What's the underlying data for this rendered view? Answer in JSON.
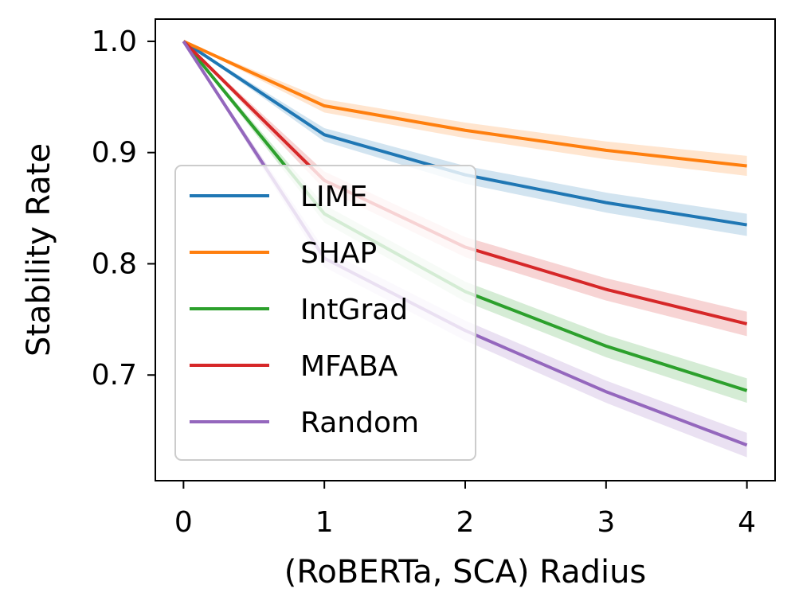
{
  "chart_data": {
    "type": "line",
    "title": "",
    "xlabel": "(RoBERTa, SCA) Radius",
    "ylabel": "Stability Rate",
    "x": [
      0,
      1,
      2,
      3,
      4
    ],
    "xlim": [
      -0.2,
      4.2
    ],
    "ylim": [
      0.605,
      1.02
    ],
    "x_ticks": [
      "0",
      "1",
      "2",
      "3",
      "4"
    ],
    "y_ticks": [
      {
        "value": 0.7,
        "label": "0.7"
      },
      {
        "value": 0.8,
        "label": "0.8"
      },
      {
        "value": 0.9,
        "label": "0.9"
      },
      {
        "value": 1.0,
        "label": "1.0"
      }
    ],
    "grid": false,
    "legend_position": "lower-left",
    "series": [
      {
        "name": "LIME",
        "color": "#1f77b4",
        "values": [
          1.0,
          0.916,
          0.88,
          0.855,
          0.835
        ],
        "band": [
          0.0,
          0.006,
          0.008,
          0.009,
          0.01
        ]
      },
      {
        "name": "SHAP",
        "color": "#ff7f0e",
        "values": [
          1.0,
          0.942,
          0.92,
          0.902,
          0.888
        ],
        "band": [
          0.0,
          0.006,
          0.007,
          0.008,
          0.009
        ]
      },
      {
        "name": "IntGrad",
        "color": "#2ca02c",
        "values": [
          1.0,
          0.845,
          0.775,
          0.726,
          0.686
        ],
        "band": [
          0.0,
          0.008,
          0.009,
          0.01,
          0.011
        ]
      },
      {
        "name": "MFABA",
        "color": "#d62728",
        "values": [
          1.0,
          0.875,
          0.815,
          0.777,
          0.746
        ],
        "band": [
          0.0,
          0.008,
          0.009,
          0.01,
          0.011
        ]
      },
      {
        "name": "Random",
        "color": "#9467bd",
        "values": [
          1.0,
          0.805,
          0.74,
          0.685,
          0.637
        ],
        "band": [
          0.0,
          0.008,
          0.009,
          0.01,
          0.011
        ]
      }
    ]
  }
}
